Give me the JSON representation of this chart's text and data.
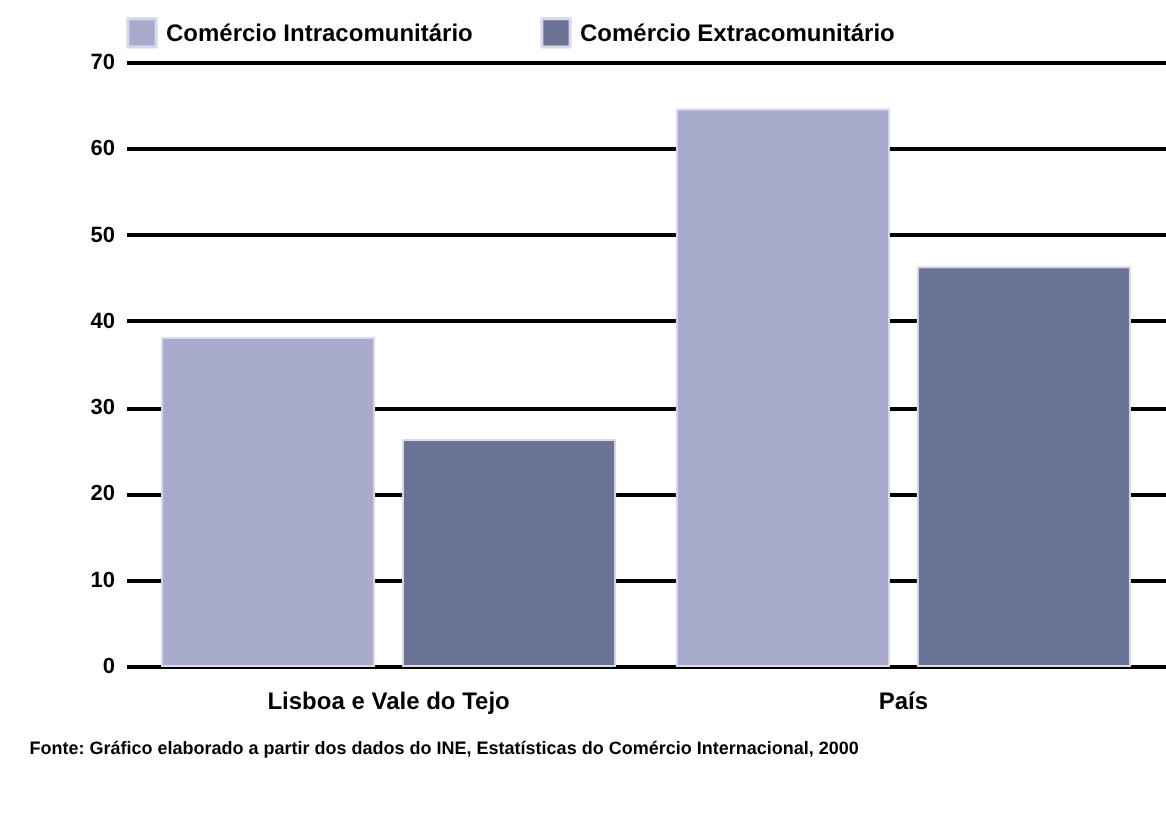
{
  "chart_data": {
    "type": "bar",
    "categories": [
      "Lisboa e Vale do Tejo",
      "País"
    ],
    "series": [
      {
        "name": "Comércio Intracomunitário",
        "color": "#a9abcc",
        "values": [
          38,
          64.5
        ]
      },
      {
        "name": "Comércio Extracomunitário",
        "color": "#6b7395",
        "values": [
          26.2,
          46.2
        ]
      }
    ],
    "ylim": [
      0,
      70
    ],
    "yticks": [
      0,
      10,
      20,
      30,
      40,
      50,
      60,
      70
    ],
    "grid": "y",
    "legend": "top",
    "annotations": [
      "Fonte: Gráfico elaborado a partir dos dados do INE, Estatísticas do Comércio Internacional, 2000"
    ]
  }
}
